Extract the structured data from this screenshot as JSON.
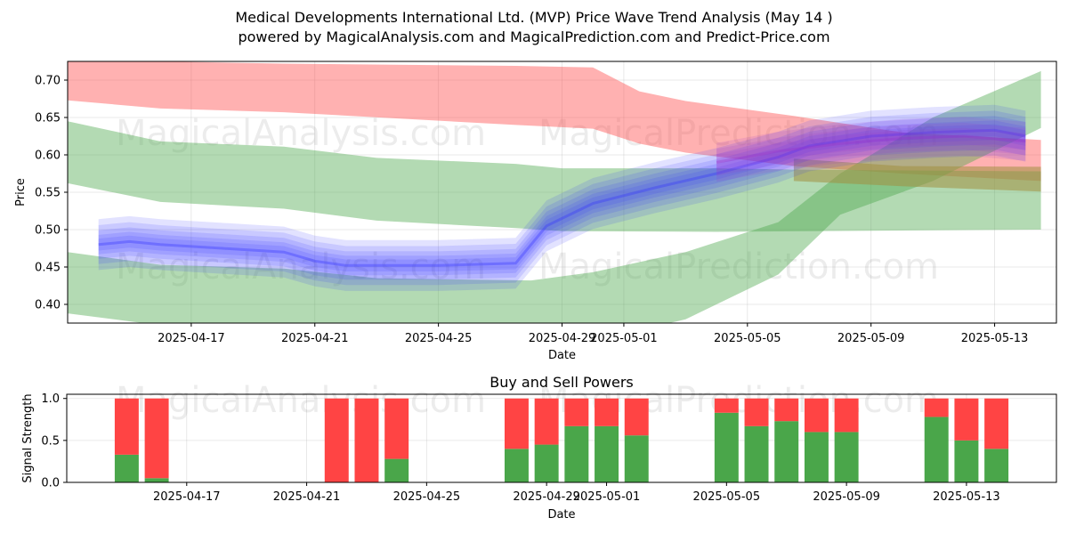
{
  "title_line1": "Medical Developments International Ltd. (MVP) Price Wave Trend Analysis (May 14 )",
  "title_line2": "powered by MagicalAnalysis.com and MagicalPrediction.com and Predict-Price.com",
  "watermarks": [
    "MagicalAnalysis.com",
    "MagicalPrediction.com"
  ],
  "colors": {
    "red": "#ff4444",
    "green": "#4aa64a",
    "blue": "#3333ff",
    "purple": "#9933cc"
  },
  "chart_data": [
    {
      "type": "area",
      "title": "",
      "xlabel": "Date",
      "ylabel": "Price",
      "xlim": [
        "2025-04-13",
        "2025-05-15"
      ],
      "ylim": [
        0.375,
        0.725
      ],
      "x_ticks": [
        "2025-04-17",
        "2025-04-21",
        "2025-04-25",
        "2025-04-29",
        "2025-05-01",
        "2025-05-05",
        "2025-05-09",
        "2025-05-13"
      ],
      "y_ticks": [
        0.4,
        0.45,
        0.5,
        0.55,
        0.6,
        0.65,
        0.7
      ],
      "grid": true,
      "bands": [
        {
          "name": "red wave band",
          "color": "red",
          "x": [
            0.0,
            3.0,
            7.0,
            14.5,
            17.0,
            18.5,
            20.0,
            23.5,
            27.0,
            31.5
          ],
          "upper": [
            0.73,
            0.725,
            0.722,
            0.719,
            0.717,
            0.685,
            0.672,
            0.652,
            0.63,
            0.62
          ],
          "lower": [
            0.673,
            0.662,
            0.657,
            0.64,
            0.635,
            0.615,
            0.603,
            0.585,
            0.575,
            0.565
          ]
        },
        {
          "name": "green upper band",
          "color": "green",
          "x": [
            0.0,
            3.0,
            7.0,
            10.0,
            14.5,
            16.0,
            21.0,
            24.0,
            31.5
          ],
          "upper": [
            0.645,
            0.618,
            0.611,
            0.596,
            0.588,
            0.582,
            0.582,
            0.58,
            0.578
          ],
          "lower": [
            0.562,
            0.537,
            0.528,
            0.512,
            0.502,
            0.498,
            0.497,
            0.498,
            0.5
          ]
        },
        {
          "name": "green lower band",
          "color": "green",
          "x": [
            0.0,
            3.0,
            7.0,
            10.0,
            15.0,
            17.0,
            20.0,
            23.0,
            25.0,
            28.0,
            31.5
          ],
          "upper": [
            0.47,
            0.453,
            0.448,
            0.435,
            0.432,
            0.443,
            0.47,
            0.51,
            0.575,
            0.65,
            0.712
          ],
          "lower": [
            0.388,
            0.372,
            0.36,
            0.35,
            0.345,
            0.352,
            0.38,
            0.44,
            0.52,
            0.565,
            0.636
          ]
        },
        {
          "name": "olive overlap band",
          "color": "olive",
          "x": [
            23.5,
            27.0,
            31.5
          ],
          "upper": [
            0.595,
            0.585,
            0.584
          ],
          "lower": [
            0.565,
            0.558,
            0.551
          ]
        }
      ],
      "series": [
        {
          "name": "blue wave",
          "color": "blue",
          "x": [
            1,
            2,
            3,
            5,
            7,
            8,
            9,
            12,
            14.5,
            15.5,
            17,
            19,
            21,
            23,
            24,
            26,
            28,
            30,
            31
          ],
          "values": [
            0.48,
            0.484,
            0.48,
            0.475,
            0.47,
            0.458,
            0.452,
            0.452,
            0.455,
            0.505,
            0.535,
            0.556,
            0.575,
            0.597,
            0.612,
            0.625,
            0.63,
            0.633,
            0.625
          ]
        },
        {
          "name": "purple wave",
          "color": "purple",
          "x": [
            21,
            23,
            25,
            27,
            29,
            31
          ],
          "values": [
            0.59,
            0.605,
            0.615,
            0.622,
            0.625,
            0.618
          ]
        }
      ]
    },
    {
      "type": "bar",
      "title": "Buy and Sell Powers",
      "xlabel": "Date",
      "ylabel": "Signal Strength",
      "ylim": [
        0,
        1.05
      ],
      "y_ticks": [
        0.0,
        0.5,
        1.0
      ],
      "x_ticks": [
        "2025-04-17",
        "2025-04-21",
        "2025-04-25",
        "2025-04-29",
        "2025-05-01",
        "2025-05-05",
        "2025-05-09",
        "2025-05-13"
      ],
      "categories": [
        "2025-04-15",
        "2025-04-16",
        "2025-04-22",
        "2025-04-23",
        "2025-04-24",
        "2025-04-28",
        "2025-04-29",
        "2025-04-30",
        "2025-05-01",
        "2025-05-02",
        "2025-05-05",
        "2025-05-06",
        "2025-05-07",
        "2025-05-08",
        "2025-05-09",
        "2025-05-12",
        "2025-05-13",
        "2025-05-14"
      ],
      "x_index": [
        2,
        3,
        9,
        10,
        11,
        15,
        16,
        17,
        18,
        19,
        22,
        23,
        24,
        25,
        26,
        29,
        30,
        31
      ],
      "series": [
        {
          "name": "Buy",
          "color": "green",
          "values": [
            0.33,
            0.05,
            0.0,
            0.0,
            0.28,
            0.4,
            0.45,
            0.67,
            0.67,
            0.56,
            0.83,
            0.67,
            0.73,
            0.6,
            0.6,
            0.78,
            0.5,
            0.4
          ]
        },
        {
          "name": "Sell",
          "color": "red",
          "values": [
            0.67,
            0.95,
            1.0,
            1.0,
            0.72,
            0.6,
            0.55,
            0.33,
            0.33,
            0.44,
            0.17,
            0.33,
            0.27,
            0.4,
            0.4,
            0.22,
            0.5,
            0.6
          ]
        }
      ]
    }
  ]
}
